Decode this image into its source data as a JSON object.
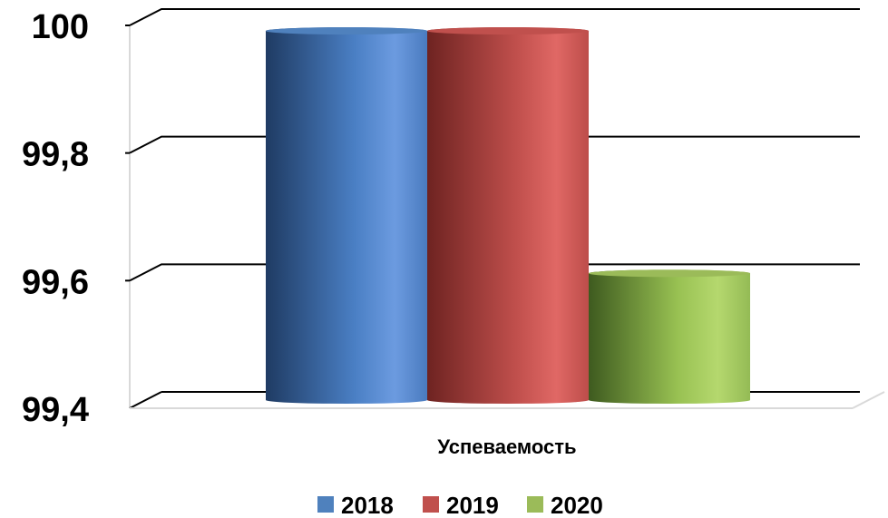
{
  "chart_data": {
    "type": "bar",
    "categories": [
      "Успеваемость"
    ],
    "series": [
      {
        "name": "2018",
        "values": [
          99.98
        ],
        "color": "#4F81BD"
      },
      {
        "name": "2019",
        "values": [
          99.98
        ],
        "color": "#C0504D"
      },
      {
        "name": "2020",
        "values": [
          99.6
        ],
        "color": "#9BBB59"
      }
    ],
    "yticks": [
      "99,4",
      "99,6",
      "99,8",
      "100"
    ],
    "ylim": [
      99.4,
      100
    ],
    "grid": true,
    "legend": "bottom",
    "style": "3d-cylinder"
  }
}
